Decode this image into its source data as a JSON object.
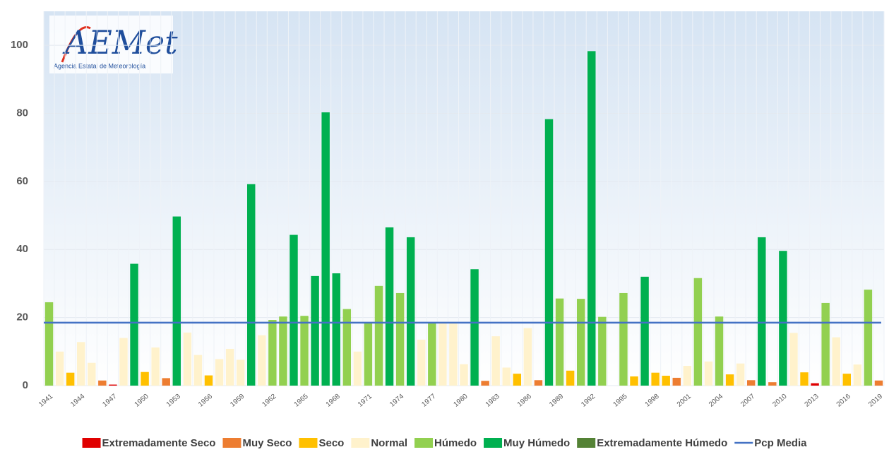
{
  "logo": {
    "text": "AEMet",
    "subtitle": "Agencia Estatal de Meteorología"
  },
  "chart_data": {
    "type": "bar",
    "categories": [
      "1941",
      null,
      null,
      "1944",
      null,
      null,
      "1947",
      null,
      null,
      "1950",
      null,
      null,
      "1953",
      null,
      null,
      "1956",
      null,
      null,
      "1959",
      null,
      null,
      "1962",
      null,
      null,
      "1965",
      null,
      null,
      "1968",
      null,
      null,
      "1971",
      null,
      null,
      "1974",
      null,
      null,
      "1977",
      null,
      null,
      "1980",
      null,
      null,
      "1983",
      null,
      null,
      "1986",
      null,
      null,
      "1989",
      null,
      null,
      "1992",
      null,
      null,
      "1995",
      null,
      null,
      "1998",
      null,
      null,
      "2001",
      null,
      null,
      "2004",
      null,
      null,
      "2007",
      null,
      null,
      "2010",
      null,
      null,
      "2013",
      null,
      null,
      "2016",
      null,
      null,
      "2019"
    ],
    "series": [
      {
        "name": "Extremadamente Seco",
        "color": "#e00000",
        "values": [
          null,
          null,
          null,
          null,
          null,
          null,
          0.3,
          null,
          null,
          null,
          null,
          null,
          null,
          null,
          null,
          null,
          null,
          null,
          null,
          null,
          null,
          null,
          null,
          null,
          null,
          null,
          null,
          null,
          null,
          null,
          null,
          null,
          null,
          null,
          null,
          null,
          null,
          null,
          null,
          null,
          null,
          null,
          null,
          null,
          null,
          null,
          null,
          null,
          null,
          null,
          null,
          null,
          null,
          null,
          null,
          null,
          null,
          null,
          null,
          null,
          null,
          null,
          null,
          null,
          null,
          null,
          null,
          null,
          null,
          null,
          null,
          null,
          0.7,
          null,
          null,
          null,
          null,
          null,
          null
        ]
      },
      {
        "name": "Muy Seco",
        "color": "#ed7d31",
        "values": [
          null,
          null,
          null,
          null,
          null,
          1.5,
          null,
          null,
          null,
          null,
          null,
          2.2,
          null,
          null,
          null,
          null,
          null,
          null,
          null,
          null,
          null,
          null,
          null,
          null,
          null,
          null,
          null,
          null,
          null,
          null,
          null,
          null,
          null,
          null,
          null,
          null,
          null,
          null,
          null,
          null,
          null,
          1.4,
          null,
          null,
          null,
          null,
          1.6,
          null,
          null,
          null,
          null,
          null,
          null,
          null,
          null,
          null,
          null,
          null,
          null,
          2.3,
          null,
          null,
          null,
          null,
          null,
          null,
          1.6,
          null,
          1,
          null,
          null,
          null,
          null,
          null,
          null,
          null,
          null,
          null,
          1.5
        ]
      },
      {
        "name": "Seco",
        "color": "#ffc000",
        "values": [
          null,
          null,
          3.8,
          null,
          null,
          null,
          null,
          null,
          null,
          4,
          null,
          null,
          null,
          null,
          null,
          3,
          null,
          null,
          null,
          null,
          null,
          null,
          null,
          null,
          null,
          null,
          null,
          null,
          null,
          null,
          null,
          null,
          null,
          null,
          null,
          null,
          null,
          null,
          null,
          null,
          null,
          null,
          null,
          null,
          3.5,
          null,
          null,
          null,
          null,
          4.4,
          null,
          null,
          null,
          null,
          null,
          2.7,
          null,
          3.8,
          2.9,
          null,
          null,
          null,
          null,
          null,
          3.3,
          null,
          null,
          null,
          null,
          null,
          null,
          3.9,
          null,
          null,
          null,
          3.5,
          null,
          null,
          null
        ]
      },
      {
        "name": "Normal",
        "color": "#fff2cc",
        "values": [
          null,
          10,
          null,
          12.8,
          6.7,
          null,
          null,
          14,
          null,
          null,
          11.2,
          null,
          null,
          15.6,
          9,
          null,
          7.8,
          10.8,
          7.6,
          null,
          14.8,
          null,
          null,
          null,
          null,
          null,
          null,
          null,
          null,
          10,
          null,
          null,
          null,
          null,
          null,
          13.5,
          null,
          18.3,
          18.3,
          6.3,
          null,
          null,
          14.5,
          5.3,
          null,
          16.9,
          null,
          null,
          null,
          null,
          null,
          null,
          null,
          null,
          null,
          null,
          null,
          null,
          null,
          null,
          5.8,
          null,
          7.1,
          null,
          null,
          6.5,
          null,
          null,
          null,
          null,
          15.5,
          null,
          null,
          null,
          14.2,
          null,
          6.2,
          null,
          null
        ]
      },
      {
        "name": "Húmedo",
        "color": "#92d050",
        "values": [
          24.5,
          null,
          null,
          null,
          null,
          null,
          null,
          null,
          null,
          null,
          null,
          null,
          null,
          null,
          null,
          null,
          null,
          null,
          null,
          null,
          null,
          19.3,
          20.3,
          null,
          20.5,
          null,
          null,
          null,
          22.5,
          null,
          18.6,
          29.3,
          null,
          27.2,
          null,
          null,
          18.6,
          null,
          null,
          null,
          null,
          null,
          null,
          null,
          null,
          null,
          null,
          null,
          25.6,
          null,
          25.5,
          null,
          20.2,
          null,
          27.2,
          null,
          null,
          null,
          null,
          null,
          null,
          31.6,
          null,
          20.3,
          null,
          null,
          null,
          null,
          null,
          null,
          null,
          null,
          null,
          24.3,
          null,
          null,
          null,
          28.2,
          null
        ]
      },
      {
        "name": "Muy Húmedo",
        "color": "#00b050",
        "values": [
          null,
          null,
          null,
          null,
          null,
          null,
          null,
          null,
          35.8,
          null,
          null,
          null,
          49.7,
          null,
          null,
          null,
          null,
          null,
          null,
          59.2,
          null,
          null,
          null,
          44.3,
          null,
          32.2,
          80.3,
          33,
          null,
          null,
          null,
          null,
          46.5,
          null,
          43.6,
          null,
          null,
          null,
          null,
          null,
          34.2,
          null,
          null,
          null,
          null,
          null,
          null,
          78.3,
          null,
          null,
          null,
          98.3,
          null,
          null,
          null,
          null,
          32,
          null,
          null,
          null,
          null,
          null,
          null,
          null,
          null,
          null,
          null,
          43.6,
          null,
          39.6,
          null,
          null,
          null,
          null,
          null,
          null,
          null,
          null,
          null
        ]
      },
      {
        "name": "Extremadamente Húmedo",
        "color": "#548235",
        "values": [
          null,
          null,
          null,
          null,
          null,
          null,
          null,
          null,
          null,
          null,
          null,
          null,
          null,
          null,
          null,
          null,
          null,
          null,
          null,
          null,
          null,
          null,
          null,
          null,
          null,
          null,
          null,
          null,
          null,
          null,
          null,
          null,
          null,
          null,
          null,
          null,
          null,
          null,
          null,
          null,
          null,
          null,
          null,
          null,
          null,
          null,
          null,
          null,
          null,
          null,
          null,
          null,
          null,
          null,
          null,
          null,
          null,
          null,
          null,
          null,
          null,
          null,
          null,
          null,
          null,
          null,
          null,
          null,
          null,
          null,
          null,
          null,
          null,
          null,
          null,
          null,
          null,
          null,
          null
        ]
      }
    ],
    "mean": {
      "name": "Pcp Media",
      "color": "#4472c4",
      "value": 18.5
    },
    "ylim": [
      0,
      110
    ],
    "yticks": [
      0,
      20,
      40,
      60,
      80,
      100
    ],
    "grid": true,
    "legend": "bottom"
  }
}
